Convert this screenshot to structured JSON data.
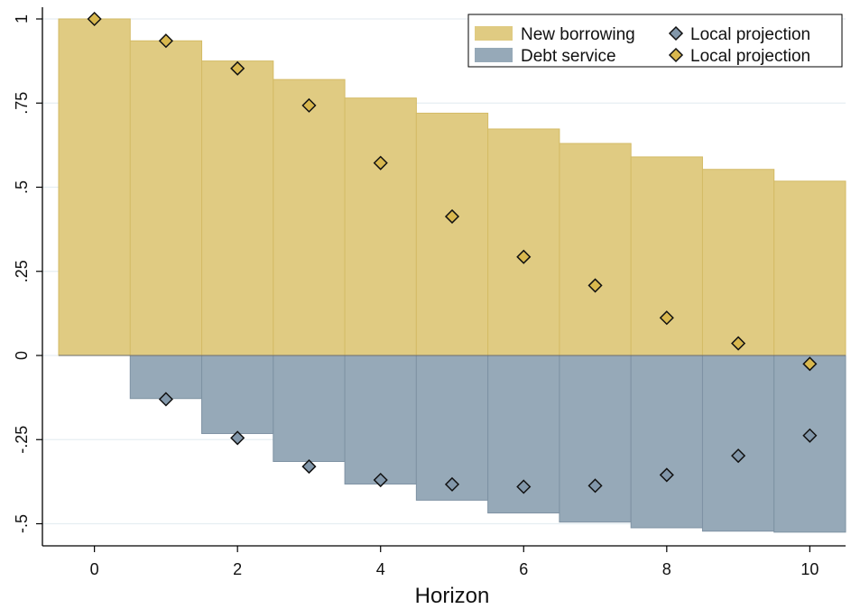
{
  "chart_data": {
    "type": "bar",
    "title": "",
    "xlabel": "Horizon",
    "ylabel": "",
    "x": [
      0,
      1,
      2,
      3,
      4,
      5,
      6,
      7,
      8,
      9,
      10
    ],
    "xlim": [
      -0.5,
      10.5
    ],
    "ylim": [
      -0.55,
      1.0
    ],
    "x_ticks": [
      0,
      2,
      4,
      6,
      8,
      10
    ],
    "x_tick_labels": [
      "0",
      "2",
      "4",
      "6",
      "8",
      "10"
    ],
    "y_ticks": [
      -0.5,
      -0.25,
      0,
      0.25,
      0.5,
      0.75,
      1
    ],
    "y_tick_labels": [
      "-.5",
      "-.25",
      "0",
      ".25",
      ".5",
      ".75",
      "1"
    ],
    "grid": true,
    "legend_position": "top-right",
    "series": [
      {
        "name": "New borrowing",
        "kind": "bar",
        "color": "#e0cb82",
        "edge_color": "#d4bb66",
        "values": [
          1.0,
          0.935,
          0.875,
          0.82,
          0.765,
          0.72,
          0.673,
          0.63,
          0.59,
          0.553,
          0.518
        ]
      },
      {
        "name": "Debt service",
        "kind": "bar",
        "color": "#96a9b8",
        "edge_color": "#7e92a3",
        "values": [
          0.0,
          -0.128,
          -0.232,
          -0.315,
          -0.382,
          -0.43,
          -0.468,
          -0.495,
          -0.512,
          -0.522,
          -0.525
        ]
      },
      {
        "name": "Local projection",
        "kind": "scatter",
        "marker": "diamond",
        "color": "#8297aa",
        "values": [
          null,
          -0.13,
          -0.245,
          -0.33,
          -0.37,
          -0.383,
          -0.39,
          -0.387,
          -0.355,
          -0.298,
          -0.238
        ]
      },
      {
        "name": "Local projection",
        "kind": "scatter",
        "marker": "diamond",
        "color": "#d9b84e",
        "values": [
          1.0,
          0.935,
          0.853,
          0.743,
          0.572,
          0.413,
          0.293,
          0.208,
          0.112,
          0.036,
          -0.025
        ]
      }
    ]
  },
  "colors": {
    "grid": "#e6eef2",
    "axis": "#000000",
    "marker_edge": "#111111"
  }
}
